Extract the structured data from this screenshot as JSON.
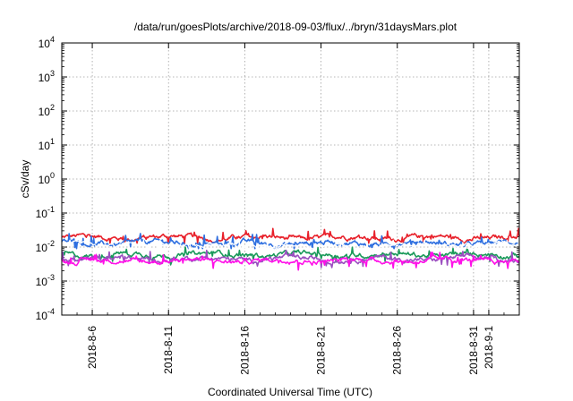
{
  "chart_data": {
    "type": "line",
    "title": "/data/run/goesPlots/archive/2018-09-03/flux/../bryn/31daysMars.plot",
    "xlabel": "Coordinated Universal Time (UTC)",
    "ylabel": "cSv/day",
    "yscale": "log",
    "ylim": [
      0.0001,
      10000
    ],
    "y_ticks": [
      {
        "value": 0.0001,
        "base": "10",
        "exp": "-4"
      },
      {
        "value": 0.001,
        "base": "10",
        "exp": "-3"
      },
      {
        "value": 0.01,
        "base": "10",
        "exp": "-2"
      },
      {
        "value": 0.1,
        "base": "10",
        "exp": "-1"
      },
      {
        "value": 1,
        "base": "10",
        "exp": "0"
      },
      {
        "value": 10,
        "base": "10",
        "exp": "1"
      },
      {
        "value": 100,
        "base": "10",
        "exp": "2"
      },
      {
        "value": 1000,
        "base": "10",
        "exp": "3"
      },
      {
        "value": 10000,
        "base": "10",
        "exp": "4"
      }
    ],
    "xlim": [
      "2018-08-04",
      "2018-09-03"
    ],
    "x_ticks": [
      "2018-8-6",
      "2018-8-11",
      "2018-8-16",
      "2018-8-21",
      "2018-8-26",
      "2018-8-31",
      "2018-9-1"
    ],
    "grid": true,
    "series": [
      {
        "color": "#e8202a",
        "y_min": 0.013,
        "y_max": 0.035,
        "typical": 0.019
      },
      {
        "color": "#2e6fe0",
        "y_min": 0.009,
        "y_max": 0.025,
        "typical": 0.013
      },
      {
        "color": "#ffffff",
        "y_min": 0.008,
        "y_max": 0.016,
        "typical": 0.011
      },
      {
        "color": "#1a9a5a",
        "y_min": 0.003,
        "y_max": 0.01,
        "typical": 0.006
      },
      {
        "color": "#9b4ec0",
        "y_min": 0.0025,
        "y_max": 0.008,
        "typical": 0.0045
      },
      {
        "color": "#ff10e8",
        "y_min": 0.001,
        "y_max": 0.007,
        "typical": 0.004
      }
    ]
  }
}
